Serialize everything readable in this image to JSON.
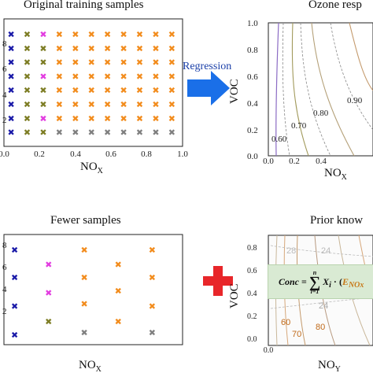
{
  "titles": {
    "top_left": "Original training samples",
    "top_right": "Ozone resp",
    "bottom_left": "Fewer samples",
    "bottom_right": "Prior know"
  },
  "arrow": {
    "label": "Regression",
    "color": "#1a6fe8"
  },
  "plus": {
    "color": "#e8262a"
  },
  "formula": {
    "lhs": "Conc",
    "eq": "=",
    "sum_top": "n",
    "sum_bottom": "i=1",
    "term": "X",
    "term_sub": "i",
    "dot": "·",
    "paren_open": "(",
    "e_var": "E",
    "e_sub": "NOx",
    "background": "#d9ead3"
  },
  "axes": {
    "nox_label": "NO",
    "nox_sub": "X",
    "nox_sub_bottom_right": "Y",
    "voc_label": "VOC"
  },
  "colors": {
    "blue": "#1a1aa8",
    "olive": "#7d7d24",
    "magenta": "#e23ce0",
    "orange": "#f28c1d",
    "gray": "#7f7f7f"
  },
  "chart_data": [
    {
      "type": "scatter",
      "title": "Original training samples",
      "xlabel": "NOx",
      "xlim": [
        0,
        1.0
      ],
      "ylim": [
        0,
        1.0
      ],
      "xticks": [
        "0.0",
        "0.2",
        "0.4",
        "0.6",
        "0.8",
        "1.0"
      ],
      "yticks": [
        "0",
        "2",
        "4",
        "6",
        "8"
      ],
      "columns_x": [
        0.04,
        0.13,
        0.22,
        0.31,
        0.4,
        0.49,
        0.58,
        0.67,
        0.76,
        0.85,
        0.94
      ],
      "rows_y": [
        0.88,
        0.77,
        0.66,
        0.55,
        0.44,
        0.33,
        0.22,
        0.11
      ],
      "column_colors": [
        [
          "blue",
          "blue",
          "blue",
          "blue",
          "blue",
          "blue",
          "blue",
          "blue"
        ],
        [
          "olive",
          "olive",
          "olive",
          "olive",
          "olive",
          "olive",
          "olive",
          "olive"
        ],
        [
          "magenta",
          "olive",
          "olive",
          "magenta",
          "olive",
          "olive",
          "magenta",
          "olive"
        ],
        [
          "orange",
          "orange",
          "orange",
          "orange",
          "orange",
          "orange",
          "orange",
          "gray"
        ],
        [
          "orange",
          "orange",
          "orange",
          "orange",
          "orange",
          "orange",
          "orange",
          "gray"
        ],
        [
          "orange",
          "orange",
          "orange",
          "orange",
          "orange",
          "orange",
          "orange",
          "gray"
        ],
        [
          "orange",
          "orange",
          "orange",
          "orange",
          "orange",
          "orange",
          "orange",
          "gray"
        ],
        [
          "orange",
          "orange",
          "orange",
          "orange",
          "orange",
          "orange",
          "orange",
          "gray"
        ],
        [
          "orange",
          "orange",
          "orange",
          "orange",
          "orange",
          "orange",
          "orange",
          "gray"
        ],
        [
          "orange",
          "orange",
          "orange",
          "orange",
          "orange",
          "orange",
          "orange",
          "gray"
        ],
        [
          "orange",
          "orange",
          "orange",
          "orange",
          "orange",
          "orange",
          "orange",
          "gray"
        ]
      ]
    },
    {
      "type": "scatter",
      "title": "Fewer samples",
      "xlabel": "NOx",
      "xlim": [
        0,
        1.0
      ],
      "ylim": [
        0,
        1.0
      ],
      "yticks": [
        "0",
        "2",
        "4",
        "6",
        "8"
      ],
      "points": [
        {
          "x": 0.06,
          "y": 0.86,
          "c": "blue"
        },
        {
          "x": 0.06,
          "y": 0.61,
          "c": "blue"
        },
        {
          "x": 0.06,
          "y": 0.35,
          "c": "blue"
        },
        {
          "x": 0.06,
          "y": 0.09,
          "c": "blue"
        },
        {
          "x": 0.25,
          "y": 0.73,
          "c": "magenta"
        },
        {
          "x": 0.25,
          "y": 0.47,
          "c": "magenta"
        },
        {
          "x": 0.25,
          "y": 0.21,
          "c": "olive"
        },
        {
          "x": 0.45,
          "y": 0.86,
          "c": "orange"
        },
        {
          "x": 0.45,
          "y": 0.61,
          "c": "orange"
        },
        {
          "x": 0.45,
          "y": 0.37,
          "c": "orange"
        },
        {
          "x": 0.45,
          "y": 0.11,
          "c": "gray"
        },
        {
          "x": 0.64,
          "y": 0.73,
          "c": "orange"
        },
        {
          "x": 0.64,
          "y": 0.49,
          "c": "orange"
        },
        {
          "x": 0.64,
          "y": 0.21,
          "c": "orange"
        },
        {
          "x": 0.83,
          "y": 0.86,
          "c": "orange"
        },
        {
          "x": 0.83,
          "y": 0.61,
          "c": "orange"
        },
        {
          "x": 0.83,
          "y": 0.35,
          "c": "orange"
        },
        {
          "x": 0.83,
          "y": 0.11,
          "c": "gray"
        }
      ]
    },
    {
      "type": "contour",
      "title": "Ozone resp",
      "xlabel": "NOx",
      "ylabel": "VOC",
      "contour_labels": [
        "0.60",
        "0.70",
        "0.80",
        "0.90"
      ]
    },
    {
      "type": "contour",
      "title": "Prior know",
      "xlabel": "NOy",
      "ylabel": "VOC",
      "contour_labels": [
        "60",
        "70",
        "80",
        "24",
        "24",
        "28"
      ]
    }
  ]
}
